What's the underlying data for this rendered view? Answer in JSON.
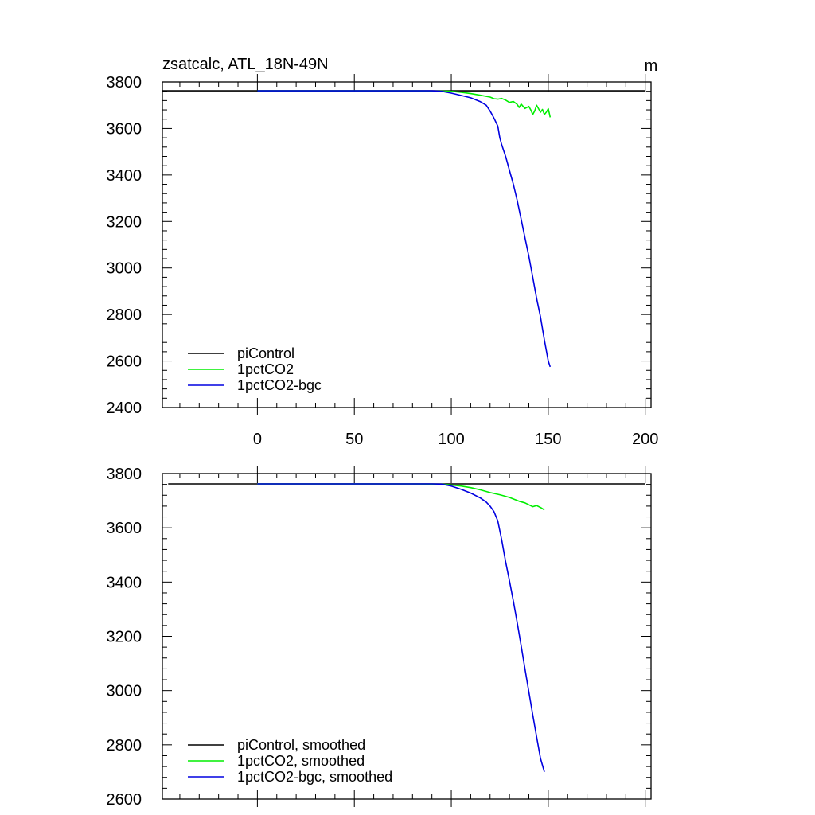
{
  "chart_data": [
    {
      "type": "line",
      "title": "zsatcalc, ATL_18N-49N",
      "units": "m",
      "xlim": [
        -49,
        203
      ],
      "ylim": [
        2400,
        3800
      ],
      "xticks": [
        0,
        50,
        100,
        150,
        200
      ],
      "yticks": [
        2400,
        2600,
        2800,
        3000,
        3200,
        3400,
        3600,
        3800
      ],
      "show_x_tick_labels": true,
      "grid": false,
      "legend_position": "bottom-left",
      "series": [
        {
          "name": "piControl",
          "color": "#000000",
          "x": [
            -49,
            200
          ],
          "y": [
            3762,
            3762
          ]
        },
        {
          "name": "1pctCO2",
          "color": "#00ee00",
          "x": [
            0,
            20,
            40,
            60,
            80,
            95,
            100,
            105,
            110,
            115,
            120,
            122,
            124,
            126,
            128,
            130,
            132,
            134,
            135,
            136,
            138,
            140,
            141,
            142,
            143,
            144,
            145,
            146,
            147,
            148,
            149,
            150,
            151
          ],
          "y": [
            3762,
            3762,
            3762,
            3762,
            3762,
            3761,
            3760,
            3756,
            3750,
            3743,
            3735,
            3728,
            3726,
            3729,
            3722,
            3712,
            3716,
            3703,
            3690,
            3705,
            3686,
            3695,
            3680,
            3660,
            3675,
            3700,
            3685,
            3670,
            3682,
            3660,
            3670,
            3685,
            3648
          ]
        },
        {
          "name": "1pctCO2-bgc",
          "color": "#0000e0",
          "x": [
            0,
            20,
            40,
            60,
            80,
            90,
            95,
            100,
            105,
            110,
            115,
            118,
            120,
            122,
            124,
            125,
            126,
            128,
            130,
            132,
            134,
            136,
            138,
            140,
            142,
            144,
            146,
            148,
            150,
            151
          ],
          "y": [
            3762,
            3762,
            3762,
            3762,
            3762,
            3762,
            3760,
            3752,
            3742,
            3732,
            3715,
            3700,
            3675,
            3645,
            3610,
            3560,
            3530,
            3480,
            3420,
            3360,
            3290,
            3210,
            3130,
            3050,
            2960,
            2870,
            2790,
            2690,
            2600,
            2575
          ]
        }
      ]
    },
    {
      "type": "line",
      "title": "",
      "units": "",
      "xlim": [
        -49,
        203
      ],
      "ylim": [
        2600,
        3800
      ],
      "xticks": [
        0,
        50,
        100,
        150,
        200
      ],
      "yticks": [
        2600,
        2800,
        3000,
        3200,
        3400,
        3600,
        3800
      ],
      "show_x_tick_labels": false,
      "grid": false,
      "legend_position": "bottom-left",
      "series": [
        {
          "name": "piControl, smoothed",
          "color": "#000000",
          "x": [
            -46,
            200
          ],
          "y": [
            3762,
            3762
          ]
        },
        {
          "name": "1pctCO2, smoothed",
          "color": "#00ee00",
          "x": [
            0,
            20,
            40,
            60,
            80,
            95,
            100,
            105,
            110,
            115,
            120,
            125,
            130,
            135,
            138,
            140,
            142,
            144,
            146,
            148
          ],
          "y": [
            3762,
            3762,
            3762,
            3762,
            3762,
            3761,
            3758,
            3754,
            3748,
            3740,
            3730,
            3722,
            3712,
            3698,
            3692,
            3685,
            3678,
            3682,
            3675,
            3666
          ]
        },
        {
          "name": "1pctCO2-bgc, smoothed",
          "color": "#0000e0",
          "x": [
            0,
            20,
            40,
            60,
            80,
            90,
            95,
            100,
            105,
            110,
            115,
            118,
            120,
            122,
            124,
            126,
            128,
            130,
            132,
            134,
            136,
            138,
            140,
            142,
            144,
            146,
            148
          ],
          "y": [
            3762,
            3762,
            3762,
            3762,
            3762,
            3762,
            3761,
            3754,
            3742,
            3728,
            3710,
            3695,
            3680,
            3660,
            3625,
            3555,
            3475,
            3405,
            3330,
            3250,
            3165,
            3080,
            2995,
            2910,
            2830,
            2750,
            2700
          ]
        }
      ]
    }
  ]
}
